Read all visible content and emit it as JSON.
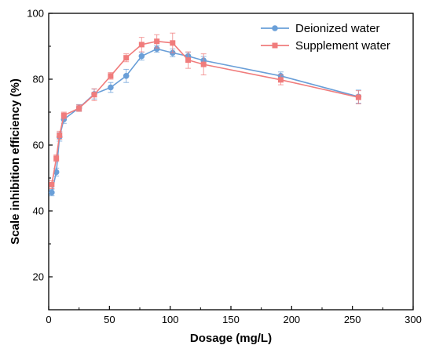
{
  "chart_data": {
    "type": "line",
    "title": "",
    "xlabel": "Dosage (mg/L)",
    "ylabel": "Scale inhibition efficiency (%)",
    "xlim": [
      0,
      300
    ],
    "ylim": [
      10,
      100
    ],
    "xticks": [
      0,
      50,
      100,
      150,
      200,
      250,
      300
    ],
    "yticks": [
      20,
      40,
      60,
      80,
      100
    ],
    "grid": false,
    "legend_position": "top-right",
    "series": [
      {
        "name": "Deionized water",
        "color": "#6a9fd8",
        "marker": "circle",
        "x": [
          2.5,
          6.25,
          8.9,
          12.5,
          25,
          37.5,
          51,
          63.8,
          76.5,
          89,
          102,
          114.8,
          127.5,
          191,
          255
        ],
        "y": [
          45.6,
          51.8,
          62.5,
          67.8,
          71.3,
          75.5,
          77.5,
          81.0,
          87.0,
          89.2,
          88.0,
          87.0,
          85.7,
          81.0,
          74.7
        ],
        "err": [
          1.0,
          1.2,
          1.3,
          1.2,
          1.0,
          1.5,
          1.5,
          2.0,
          1.2,
          1.0,
          1.2,
          1.2,
          1.2,
          1.2,
          2.0
        ]
      },
      {
        "name": "Supplement water",
        "color": "#f07c7c",
        "marker": "square",
        "x": [
          2.5,
          6.25,
          8.9,
          12.5,
          25,
          37.5,
          51,
          63.8,
          76.5,
          89,
          102,
          114.8,
          127.5,
          191,
          255
        ],
        "y": [
          48.0,
          56.0,
          63.0,
          69.0,
          71.2,
          75.3,
          81.0,
          86.5,
          90.5,
          91.5,
          91.0,
          85.8,
          84.5,
          79.8,
          74.5
        ],
        "err": [
          1.2,
          1.0,
          1.2,
          1.0,
          1.0,
          1.8,
          1.0,
          1.2,
          2.2,
          2.0,
          3.0,
          2.5,
          3.2,
          1.5,
          2.0
        ]
      }
    ]
  }
}
